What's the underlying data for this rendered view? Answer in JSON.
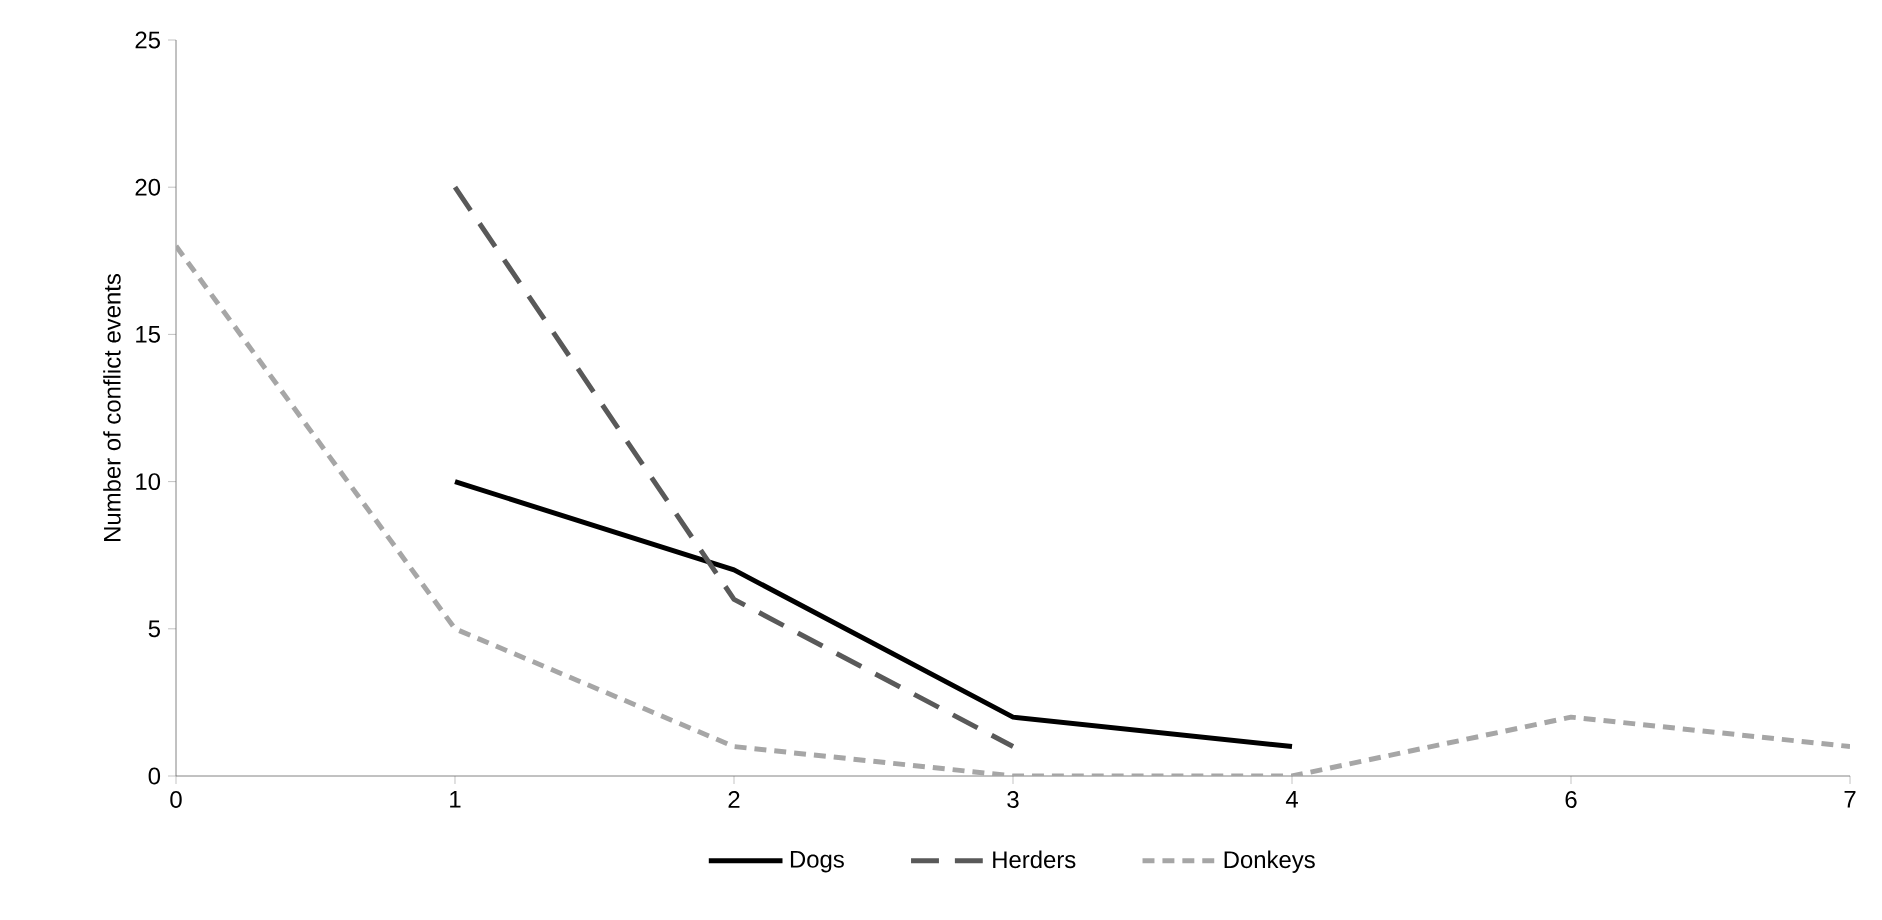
{
  "chart_data": {
    "type": "line",
    "ylabel": "Number of conflict events",
    "categories": [
      "0",
      "1",
      "2",
      "3",
      "4",
      "6",
      "7"
    ],
    "series": [
      {
        "name": "Dogs",
        "color": "#000000",
        "line_style": "solid",
        "values": [
          null,
          10,
          7,
          2,
          1,
          null,
          null
        ]
      },
      {
        "name": "Herders",
        "color": "#595959",
        "line_style": "dashed",
        "values": [
          null,
          20,
          6,
          1,
          null,
          null,
          null
        ]
      },
      {
        "name": "Donkeys",
        "color": "#a6a6a6",
        "line_style": "dashed",
        "values": [
          18,
          5,
          1,
          0,
          0,
          2,
          1
        ]
      }
    ],
    "ylim": [
      0,
      25
    ],
    "yticks": [
      0,
      5,
      10,
      15,
      20,
      25
    ],
    "grid": false,
    "legend": "bottom",
    "marker": "none"
  }
}
